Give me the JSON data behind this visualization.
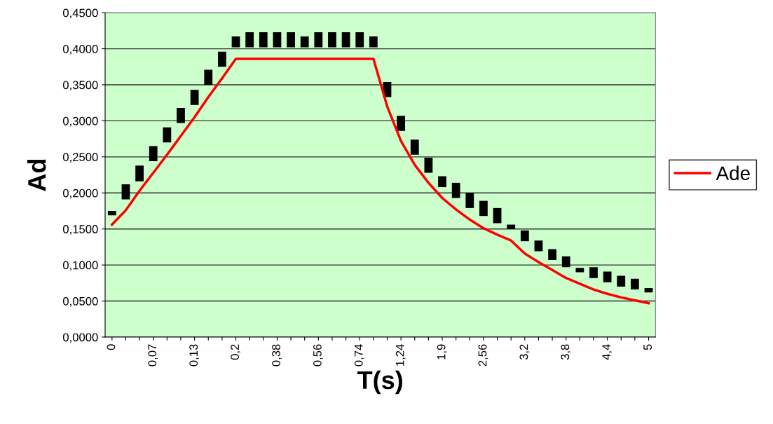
{
  "chart_data": {
    "type": "line",
    "xlabel": "T(s)",
    "ylabel": "Ad",
    "categories": [
      "0",
      null,
      null,
      "0,07",
      null,
      null,
      "0,13",
      null,
      null,
      "0,2",
      null,
      null,
      "0,38",
      null,
      null,
      "0,56",
      null,
      null,
      "0,74",
      null,
      null,
      "1,24",
      null,
      null,
      "1,9",
      null,
      null,
      "2,56",
      null,
      null,
      "3,2",
      null,
      null,
      "3,8",
      null,
      null,
      "4,4",
      null,
      null,
      "5"
    ],
    "series": [
      {
        "type": "bar",
        "color": "#000000",
        "base": [
          0.169,
          0.191,
          0.216,
          0.244,
          0.27,
          0.297,
          0.322,
          0.35,
          0.375,
          0.402,
          0.402,
          0.402,
          0.402,
          0.402,
          0.402,
          0.402,
          0.402,
          0.402,
          0.402,
          0.402,
          0.333,
          0.286,
          0.253,
          0.228,
          0.208,
          0.193,
          0.179,
          0.168,
          0.158,
          0.15,
          0.133,
          0.119,
          0.107,
          0.097,
          0.09,
          0.082,
          0.076,
          0.07,
          0.066,
          0.062
        ],
        "values": [
          0.006,
          0.021,
          0.022,
          0.021,
          0.021,
          0.021,
          0.021,
          0.021,
          0.021,
          0.015,
          0.021,
          0.021,
          0.021,
          0.021,
          0.015,
          0.021,
          0.021,
          0.021,
          0.021,
          0.015,
          0.021,
          0.021,
          0.021,
          0.021,
          0.015,
          0.021,
          0.021,
          0.021,
          0.021,
          0.006,
          0.015,
          0.015,
          0.015,
          0.015,
          0.006,
          0.015,
          0.015,
          0.015,
          0.015,
          0.006
        ]
      },
      {
        "name": "Ade",
        "color": "#ff0000",
        "values": [
          0.156,
          0.176,
          0.203,
          0.228,
          0.253,
          0.279,
          0.305,
          0.333,
          0.359,
          0.386,
          0.386,
          0.386,
          0.386,
          0.386,
          0.386,
          0.386,
          0.386,
          0.386,
          0.386,
          0.386,
          0.32,
          0.272,
          0.239,
          0.214,
          0.193,
          0.177,
          0.163,
          0.151,
          0.142,
          0.134,
          0.116,
          0.104,
          0.093,
          0.082,
          0.074,
          0.066,
          0.06,
          0.055,
          0.051,
          0.047
        ]
      }
    ],
    "ylim": [
      0,
      0.45
    ],
    "yticks": [
      {
        "value": 0,
        "label": "0,0000"
      },
      {
        "value": 0.05,
        "label": "0,0500"
      },
      {
        "value": 0.1,
        "label": "0,1000"
      },
      {
        "value": 0.15,
        "label": "0,1500"
      },
      {
        "value": 0.2,
        "label": "0,2000"
      },
      {
        "value": 0.25,
        "label": "0,2500"
      },
      {
        "value": 0.3,
        "label": "0,3000"
      },
      {
        "value": 0.35,
        "label": "0,3500"
      },
      {
        "value": 0.4,
        "label": "0,4000"
      },
      {
        "value": 0.45,
        "label": "0,4500"
      }
    ],
    "grid": "y",
    "legend": "right",
    "marker": "none",
    "line_style": "solid"
  }
}
